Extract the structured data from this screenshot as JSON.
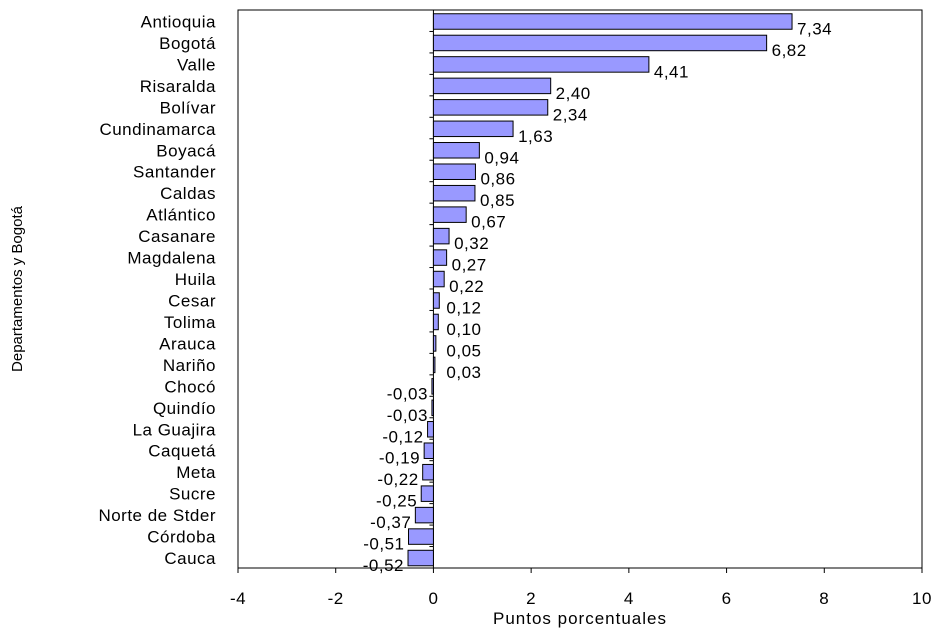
{
  "chart_data": {
    "type": "bar",
    "orientation": "horizontal",
    "title": "",
    "xlabel": "Puntos porcentuales",
    "ylabel": "Departamentos y Bogotá",
    "xlim": [
      -4,
      10
    ],
    "xticks": [
      -4,
      -2,
      0,
      2,
      4,
      6,
      8,
      10
    ],
    "xtick_labels": [
      "-4",
      "-2",
      "0",
      "2",
      "4",
      "6",
      "8",
      "10"
    ],
    "grid": false,
    "legend": "none",
    "bar_color": "#9999ff",
    "categories": [
      "Antioquia",
      "Bogotá",
      "Valle",
      "Risaralda",
      "Bolívar",
      "Cundinamarca",
      "Boyacá",
      "Santander",
      "Caldas",
      "Atlántico",
      "Casanare",
      "Magdalena",
      "Huila",
      "Cesar",
      "Tolima",
      "Arauca",
      "Nariño",
      "Chocó",
      "Quindío",
      "La Guajira",
      "Caquetá",
      "Meta",
      "Sucre",
      "Norte de Stder",
      "Córdoba",
      "Cauca"
    ],
    "values": [
      7.34,
      6.82,
      4.41,
      2.4,
      2.34,
      1.63,
      0.94,
      0.86,
      0.85,
      0.67,
      0.32,
      0.27,
      0.22,
      0.12,
      0.1,
      0.05,
      0.03,
      -0.03,
      -0.03,
      -0.12,
      -0.19,
      -0.22,
      -0.25,
      -0.37,
      -0.51,
      -0.52
    ],
    "value_labels": [
      "7,34",
      "6,82",
      "4,41",
      "2,40",
      "2,34",
      "1,63",
      "0,94",
      "0,86",
      "0,85",
      "0,67",
      "0,32",
      "0,27",
      "0,22",
      "0,12",
      "0,10",
      "0,05",
      "0,03",
      "-0,03",
      "-0,03",
      "-0,12",
      "-0,19",
      "-0,22",
      "-0,25",
      "-0,37",
      "-0,51",
      "-0,52"
    ]
  }
}
